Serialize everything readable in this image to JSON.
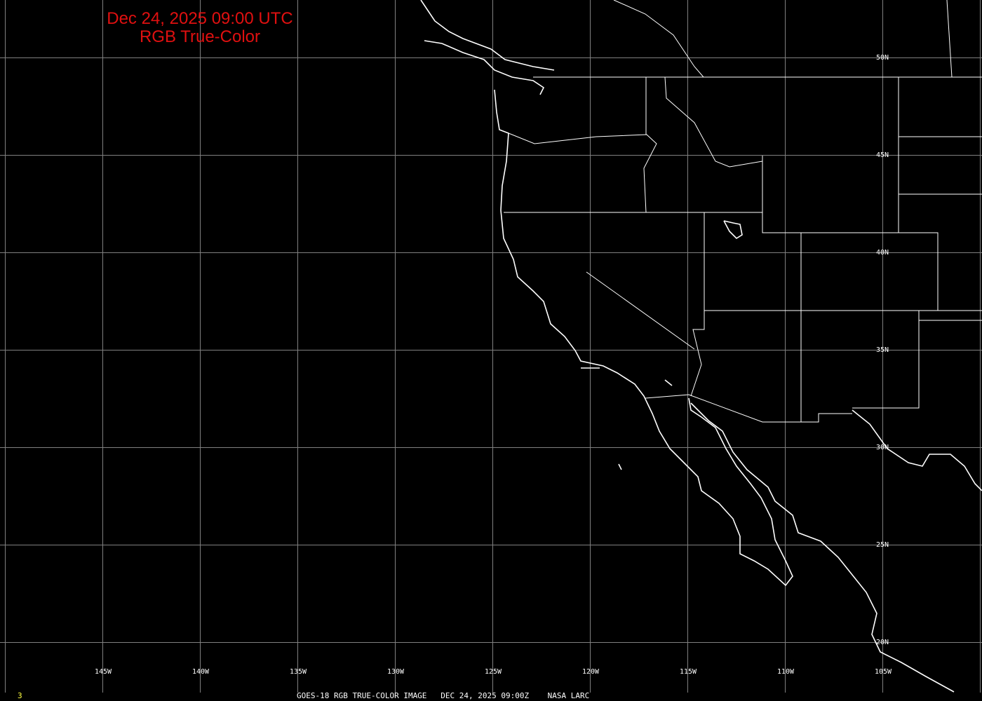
{
  "title": {
    "line1": "Dec 24, 2025 09:00 UTC",
    "line2": "RGB True-Color"
  },
  "longitude_labels": [
    "145W",
    "140W",
    "135W",
    "130W",
    "125W",
    "120W",
    "115W",
    "110W",
    "105W"
  ],
  "latitude_labels": [
    "50N",
    "45N",
    "40N",
    "35N",
    "30N",
    "25N",
    "20N"
  ],
  "footer": {
    "frame_number": "3",
    "caption": "GOES-18 RGB TRUE-COLOR IMAGE   DEC 24, 2025 09:00Z    NASA LARC"
  },
  "colors": {
    "background": "#000000",
    "grid": "#808080",
    "coastline": "#ffffff",
    "title": "#e01010",
    "frame_number": "#ffff40"
  }
}
